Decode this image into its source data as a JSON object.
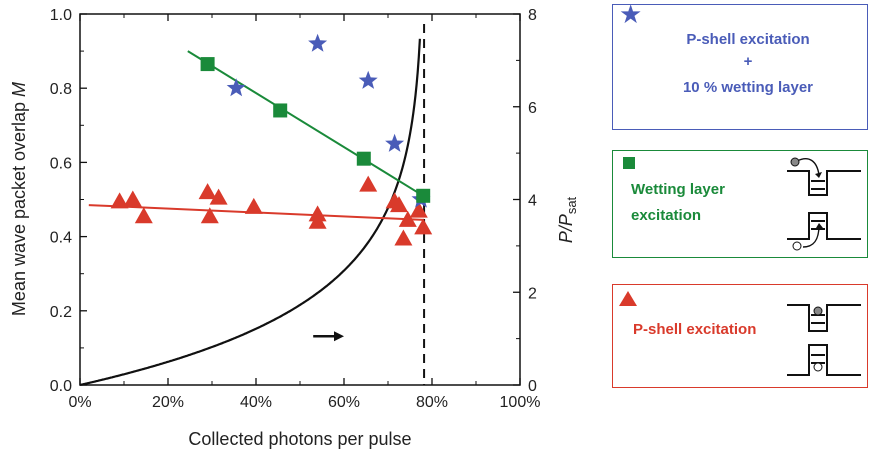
{
  "chart_data": {
    "type": "scatter",
    "xlabel": "Collected photons per pulse",
    "ylabel": "Mean wave packet overlap",
    "ylabel_symbol": "M",
    "y2label_main": "P/P",
    "y2label_sub": "sat",
    "xlim": [
      0,
      100
    ],
    "ylim": [
      0,
      1.0
    ],
    "y2lim": [
      0,
      8
    ],
    "x_ticks": [
      "0%",
      "20%",
      "40%",
      "60%",
      "80%",
      "100%"
    ],
    "y_ticks": [
      "0.0",
      "0.2",
      "0.4",
      "0.6",
      "0.8",
      "1.0"
    ],
    "y2_ticks": [
      "0",
      "2",
      "4",
      "6",
      "8"
    ],
    "grid": false,
    "series": [
      {
        "name": "P-shell excitation + 10 % wetting layer",
        "marker": "star",
        "color": "#4a5cb8",
        "points": [
          [
            35.5,
            0.8
          ],
          [
            54.0,
            0.92
          ],
          [
            65.5,
            0.82
          ],
          [
            71.5,
            0.65
          ],
          [
            77.5,
            0.5
          ]
        ]
      },
      {
        "name": "Wetting layer excitation",
        "marker": "square",
        "color": "#1a8a3a",
        "points": [
          [
            29.0,
            0.865
          ],
          [
            45.5,
            0.74
          ],
          [
            64.5,
            0.61
          ],
          [
            78.0,
            0.51
          ]
        ],
        "fit": [
          [
            24.5,
            0.9
          ],
          [
            78.0,
            0.51
          ]
        ]
      },
      {
        "name": "P-shell excitation",
        "marker": "triangle",
        "color": "#d93a2b",
        "points": [
          [
            9.0,
            0.495
          ],
          [
            12.0,
            0.5
          ],
          [
            14.5,
            0.455
          ],
          [
            29.0,
            0.52
          ],
          [
            29.5,
            0.455
          ],
          [
            31.5,
            0.505
          ],
          [
            39.5,
            0.48
          ],
          [
            54.0,
            0.46
          ],
          [
            54.0,
            0.44
          ],
          [
            65.5,
            0.54
          ],
          [
            71.5,
            0.495
          ],
          [
            72.5,
            0.485
          ],
          [
            73.5,
            0.395
          ],
          [
            74.5,
            0.445
          ],
          [
            77.0,
            0.47
          ],
          [
            78.0,
            0.425
          ]
        ],
        "fit": [
          [
            2.0,
            0.485
          ],
          [
            78.0,
            0.445
          ]
        ]
      }
    ],
    "saturation_curve": {
      "color": "#111111",
      "asymptote_x": 78.2,
      "y2_at_x20": 0.5
    },
    "dashed_line_x": 78.2,
    "arrow": {
      "x_from": 53.0,
      "x_to": 60.0,
      "y2": 1.05,
      "direction": "right"
    }
  },
  "legend": {
    "blue": {
      "line1": "P-shell excitation",
      "line2": "+",
      "line3": "10 % wetting layer",
      "color": "#4a5cb8"
    },
    "green": {
      "line1": "Wetting layer",
      "line2": "excitation",
      "color": "#1a8a3a"
    },
    "red": {
      "line1": "P-shell excitation",
      "color": "#d93a2b"
    }
  }
}
